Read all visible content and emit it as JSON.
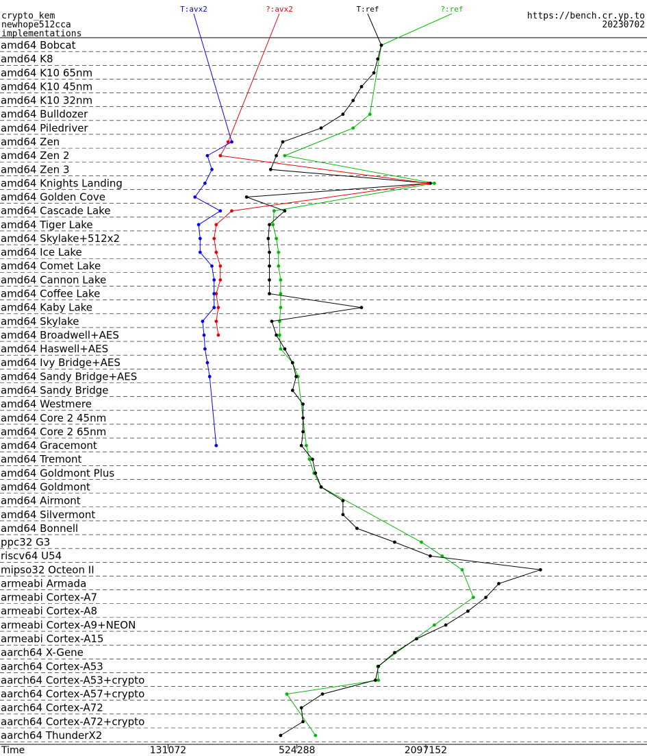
{
  "header": {
    "primitive": "crypto_kem",
    "implementation": "newhope512cca",
    "subtitle": "implementations",
    "site": "https://bench.cr.yp.to",
    "version": "20230702"
  },
  "chart_data": {
    "type": "line",
    "x_scale": "log",
    "xlabel": "Time",
    "x_ticks": [
      131072,
      524288,
      2097152
    ],
    "x_tick_labels": [
      "131072",
      "524288",
      "2097152"
    ],
    "legend_position": "top",
    "categories": [
      "amd64 Bobcat",
      "amd64 K8",
      "amd64 K10 65nm",
      "amd64 K10 45nm",
      "amd64 K10 32nm",
      "amd64 Bulldozer",
      "amd64 Piledriver",
      "amd64 Zen",
      "amd64 Zen 2",
      "amd64 Zen 3",
      "amd64 Knights Landing",
      "amd64 Golden Cove",
      "amd64 Cascade Lake",
      "amd64 Tiger Lake",
      "amd64 Skylake+512x2",
      "amd64 Ice Lake",
      "amd64 Comet Lake",
      "amd64 Cannon Lake",
      "amd64 Coffee Lake",
      "amd64 Kaby Lake",
      "amd64 Skylake",
      "amd64 Broadwell+AES",
      "amd64 Haswell+AES",
      "amd64 Ivy Bridge+AES",
      "amd64 Sandy Bridge+AES",
      "amd64 Sandy Bridge",
      "amd64 Westmere",
      "amd64 Core 2 45nm",
      "amd64 Core 2 65nm",
      "amd64 Gracemont",
      "amd64 Tremont",
      "amd64 Goldmont Plus",
      "amd64 Goldmont",
      "amd64 Airmont",
      "amd64 Silvermont",
      "amd64 Bonnell",
      "ppc32 G3",
      "riscv64 U54",
      "mipso32 Octeon II",
      "armeabi Armada",
      "armeabi Cortex-A7",
      "armeabi Cortex-A8",
      "armeabi Cortex-A9+NEON",
      "armeabi Cortex-A15",
      "aarch64 X-Gene",
      "aarch64 Cortex-A53",
      "aarch64 Cortex-A53+crypto",
      "aarch64 Cortex-A57+crypto",
      "aarch64 Cortex-A72",
      "aarch64 Cortex-A72+crypto",
      "aarch64 ThunderX2"
    ],
    "series": [
      {
        "name": "T:ref",
        "color": "#000000",
        "points": [
          [
            "amd64 Bobcat",
            1300000.0
          ],
          [
            "amd64 K8",
            1250000.0
          ],
          [
            "amd64 K10 65nm",
            1200000.0
          ],
          [
            "amd64 K10 45nm",
            1050000.0
          ],
          [
            "amd64 K10 32nm",
            960000.0
          ],
          [
            "amd64 Bulldozer",
            860000.0
          ],
          [
            "amd64 Piledriver",
            680000.0
          ],
          [
            "amd64 Zen",
            450000.0
          ],
          [
            "amd64 Zen 2",
            420000.0
          ],
          [
            "amd64 Zen 3",
            395000.0
          ],
          [
            "amd64 Knights Landing",
            2200000.0
          ],
          [
            "amd64 Golden Cove",
            305000.0
          ],
          [
            "amd64 Cascade Lake",
            460000.0
          ],
          [
            "amd64 Tiger Lake",
            390000.0
          ],
          [
            "amd64 Skylake+512x2",
            385000.0
          ],
          [
            "amd64 Ice Lake",
            390000.0
          ],
          [
            "amd64 Comet Lake",
            390000.0
          ],
          [
            "amd64 Cannon Lake",
            390000.0
          ],
          [
            "amd64 Coffee Lake",
            390000.0
          ],
          [
            "amd64 Kaby Lake",
            1050000.0
          ],
          [
            "amd64 Skylake",
            400000.0
          ],
          [
            "amd64 Broadwell+AES",
            420000.0
          ],
          [
            "amd64 Haswell+AES",
            460000.0
          ],
          [
            "amd64 Ivy Bridge+AES",
            500000.0
          ],
          [
            "amd64 Sandy Bridge+AES",
            520000.0
          ],
          [
            "amd64 Sandy Bridge",
            500000.0
          ],
          [
            "amd64 Westmere",
            560000.0
          ],
          [
            "amd64 Core 2 45nm",
            560000.0
          ],
          [
            "amd64 Core 2 65nm",
            560000.0
          ],
          [
            "amd64 Gracemont",
            550000.0
          ],
          [
            "amd64 Tremont",
            620000.0
          ],
          [
            "amd64 Goldmont Plus",
            640000.0
          ],
          [
            "amd64 Goldmont",
            680000.0
          ],
          [
            "amd64 Airmont",
            860000.0
          ],
          [
            "amd64 Silvermont",
            860000.0
          ],
          [
            "amd64 Bonnell",
            1000000.0
          ],
          [
            "ppc32 G3",
            1500000.0
          ],
          [
            "riscv64 U54",
            2200000.0
          ],
          [
            "mipso32 Octeon II",
            7200000.0
          ],
          [
            "armeabi Armada",
            4600000.0
          ],
          [
            "armeabi Cortex-A7",
            4000000.0
          ],
          [
            "armeabi Cortex-A8",
            3300000.0
          ],
          [
            "armeabi Cortex-A9+NEON",
            2600000.0
          ],
          [
            "armeabi Cortex-A15",
            1900000.0
          ],
          [
            "aarch64 X-Gene",
            1500000.0
          ],
          [
            "aarch64 Cortex-A53",
            1260000.0
          ],
          [
            "aarch64 Cortex-A53+crypto",
            1220000.0
          ],
          [
            "aarch64 Cortex-A57+crypto",
            690000.0
          ],
          [
            "aarch64 Cortex-A72",
            550000.0
          ],
          [
            "aarch64 Cortex-A72+crypto",
            560000.0
          ],
          [
            "aarch64 ThunderX2",
            440000.0
          ]
        ]
      },
      {
        "name": "?:ref",
        "color": "#00bb00",
        "points": [
          [
            "amd64 Bobcat",
            1300000.0
          ],
          [
            "amd64 Bulldozer",
            1150000.0
          ],
          [
            "amd64 Piledriver",
            960000.0
          ],
          [
            "amd64 Zen 2",
            460000.0
          ],
          [
            "amd64 Knights Landing",
            2300000.0
          ],
          [
            "amd64 Cascade Lake",
            410000.0
          ],
          [
            "amd64 Tiger Lake",
            405000.0
          ],
          [
            "amd64 Skylake+512x2",
            420000.0
          ],
          [
            "amd64 Ice Lake",
            430000.0
          ],
          [
            "amd64 Comet Lake",
            430000.0
          ],
          [
            "amd64 Cannon Lake",
            440000.0
          ],
          [
            "amd64 Coffee Lake",
            440000.0
          ],
          [
            "amd64 Kaby Lake",
            440000.0
          ],
          [
            "amd64 Skylake",
            435000.0
          ],
          [
            "amd64 Broadwell+AES",
            435000.0
          ],
          [
            "amd64 Haswell+AES",
            440000.0
          ],
          [
            "amd64 Ivy Bridge+AES",
            500000.0
          ],
          [
            "amd64 Sandy Bridge+AES",
            530000.0
          ],
          [
            "amd64 Gracemont",
            580000.0
          ],
          [
            "amd64 Tremont",
            600000.0
          ],
          [
            "amd64 Goldmont Plus",
            630000.0
          ],
          [
            "amd64 Goldmont",
            680000.0
          ],
          [
            "ppc32 G3",
            2000000.0
          ],
          [
            "riscv64 U54",
            2500000.0
          ],
          [
            "mipso32 Octeon II",
            3100000.0
          ],
          [
            "armeabi Cortex-A7",
            3500000.0
          ],
          [
            "armeabi Cortex-A9+NEON",
            2300000.0
          ],
          [
            "aarch64 Cortex-A53",
            1250000.0
          ],
          [
            "aarch64 Cortex-A53+crypto",
            1260000.0
          ],
          [
            "aarch64 Cortex-A57+crypto",
            470000.0
          ],
          [
            "aarch64 ThunderX2",
            640000.0
          ]
        ]
      },
      {
        "name": "T:avx2",
        "color": "#0000ff",
        "points": [
          [
            "amd64 Zen",
            260000.0
          ],
          [
            "amd64 Zen 2",
            200000.0
          ],
          [
            "amd64 Zen 3",
            210000.0
          ],
          [
            "amd64 Knights Landing",
            195000.0
          ],
          [
            "amd64 Golden Cove",
            175000.0
          ],
          [
            "amd64 Cascade Lake",
            230000.0
          ],
          [
            "amd64 Tiger Lake",
            182000.0
          ],
          [
            "amd64 Skylake+512x2",
            185000.0
          ],
          [
            "amd64 Ice Lake",
            185000.0
          ],
          [
            "amd64 Comet Lake",
            210000.0
          ],
          [
            "amd64 Cannon Lake",
            215000.0
          ],
          [
            "amd64 Coffee Lake",
            215000.0
          ],
          [
            "amd64 Kaby Lake",
            215000.0
          ],
          [
            "amd64 Skylake",
            190000.0
          ],
          [
            "amd64 Broadwell+AES",
            193000.0
          ],
          [
            "amd64 Haswell+AES",
            195000.0
          ],
          [
            "amd64 Ivy Bridge+AES",
            200000.0
          ],
          [
            "amd64 Sandy Bridge+AES",
            205000.0
          ],
          [
            "amd64 Gracemont",
            220000.0
          ]
        ]
      },
      {
        "name": "?:avx2",
        "color": "#ee0000",
        "points": [
          [
            "amd64 Zen",
            250000.0
          ],
          [
            "amd64 Zen 2",
            230000.0
          ],
          [
            "amd64 Knights Landing",
            2150000.0
          ],
          [
            "amd64 Cascade Lake",
            260000.0
          ],
          [
            "amd64 Tiger Lake",
            220000.0
          ],
          [
            "amd64 Skylake+512x2",
            215000.0
          ],
          [
            "amd64 Ice Lake",
            220000.0
          ],
          [
            "amd64 Comet Lake",
            230000.0
          ],
          [
            "amd64 Cannon Lake",
            230000.0
          ],
          [
            "amd64 Coffee Lake",
            220000.0
          ],
          [
            "amd64 Kaby Lake",
            225000.0
          ],
          [
            "amd64 Skylake",
            220000.0
          ],
          [
            "amd64 Broadwell+AES",
            225000.0
          ]
        ]
      }
    ]
  }
}
